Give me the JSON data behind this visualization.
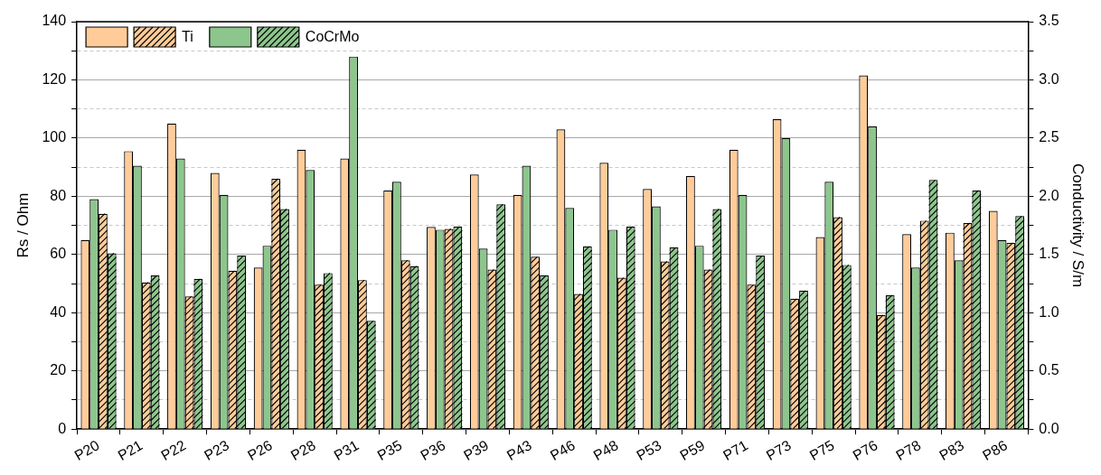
{
  "chart_data": {
    "type": "bar",
    "ylabel": "Rs / Ohm",
    "y2label": "Conductivity / S/m",
    "categories": [
      "P20",
      "P21",
      "P22",
      "P23",
      "P26",
      "P28",
      "P31",
      "P35",
      "P36",
      "P39",
      "P43",
      "P46",
      "P48",
      "P53",
      "P59",
      "P71",
      "P73",
      "P75",
      "P76",
      "P78",
      "P83",
      "P86"
    ],
    "series": [
      {
        "color": "#ffcc99",
        "values": [
          65,
          95.5,
          105,
          88,
          55.5,
          96,
          93,
          82,
          69.5,
          87.5,
          80.5,
          103,
          91.5,
          82.5,
          87,
          96,
          106.5,
          66,
          121.5,
          67,
          67.5,
          75
        ]
      },
      {
        "color": "#8dc68d",
        "values": [
          79,
          90.5,
          93,
          80.5,
          63,
          89,
          128,
          85,
          68.5,
          62,
          90.5,
          76,
          68.5,
          76.5,
          63,
          80.5,
          100,
          85,
          104,
          55.5,
          58,
          65
        ]
      },
      {
        "name": "Ti",
        "color": "#ffcc99",
        "axis": "y2",
        "values": [
          1.85,
          1.26,
          1.14,
          1.36,
          2.15,
          1.24,
          1.28,
          1.45,
          1.72,
          1.37,
          1.48,
          1.16,
          1.3,
          1.44,
          1.37,
          1.24,
          1.12,
          1.82,
          0.98,
          1.79,
          1.77,
          1.6
        ]
      },
      {
        "name": "CoCrMo",
        "color": "#8dc68d",
        "axis": "y2",
        "values": [
          1.51,
          1.32,
          1.29,
          1.49,
          1.89,
          1.34,
          0.93,
          1.4,
          1.74,
          1.93,
          1.32,
          1.57,
          1.74,
          1.56,
          1.89,
          1.49,
          1.19,
          1.41,
          1.15,
          2.14,
          2.05,
          1.83
        ]
      }
    ],
    "ylim": [
      0,
      140
    ],
    "yticks": [
      0,
      {
        "value": 10,
        "label": null
      },
      20,
      {
        "value": 30,
        "label": null
      },
      40,
      {
        "value": 50,
        "label": null
      },
      60,
      {
        "value": 70,
        "label": null
      },
      80,
      {
        "value": 90,
        "label": null
      },
      100,
      {
        "value": 110,
        "label": null
      },
      120,
      {
        "value": 130,
        "label": null
      },
      140
    ],
    "y2lim": [
      0,
      3.5
    ],
    "y2ticks": [
      {
        "value": 0,
        "label": "0.0"
      },
      {
        "value": 0.25,
        "label": null
      },
      {
        "value": 0.5,
        "label": "0.5"
      },
      {
        "value": 0.75,
        "label": null
      },
      {
        "value": 1,
        "label": "1.0"
      },
      {
        "value": 1.25,
        "label": null
      },
      {
        "value": 1.5,
        "label": "1.5"
      },
      {
        "value": 1.75,
        "label": null
      },
      {
        "value": 2,
        "label": "2.0"
      },
      {
        "value": 2.25,
        "label": null
      },
      {
        "value": 2.5,
        "label": "2.5"
      },
      {
        "value": 2.75,
        "label": null
      },
      {
        "value": 3,
        "label": "3.0"
      },
      {
        "value": 3.25,
        "label": null
      },
      {
        "value": 3.5,
        "label": "3.5"
      }
    ],
    "grid": "y",
    "legend": "top left"
  }
}
